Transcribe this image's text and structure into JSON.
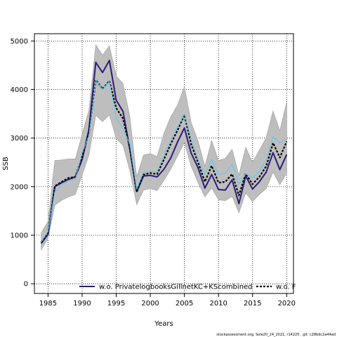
{
  "chart_data": {
    "type": "line",
    "xlabel": "Years",
    "ylabel": "SSB",
    "xlim": [
      1983,
      2021
    ],
    "ylim": [
      -200,
      5150
    ],
    "x_ticks": [
      1985,
      1990,
      1995,
      2000,
      2005,
      2010,
      2015,
      2020
    ],
    "y_ticks": [
      0,
      1000,
      2000,
      3000,
      4000,
      5000
    ],
    "grid": true,
    "legend_position": "bottom",
    "x": [
      1984,
      1985,
      1986,
      1987,
      1988,
      1989,
      1990,
      1991,
      1992,
      1993,
      1994,
      1995,
      1996,
      1997,
      1998,
      1999,
      2000,
      2001,
      2002,
      2003,
      2004,
      2005,
      2006,
      2007,
      2008,
      2009,
      2010,
      2011,
      2012,
      2013,
      2014,
      2015,
      2016,
      2017,
      2018,
      2019,
      2020
    ],
    "band": {
      "lower": [
        700,
        930,
        1620,
        1720,
        1790,
        1840,
        2240,
        2650,
        3470,
        3340,
        3480,
        2990,
        2850,
        2330,
        1630,
        1930,
        1960,
        1920,
        2130,
        2360,
        2630,
        2910,
        2420,
        2080,
        1790,
        1970,
        1730,
        1710,
        1800,
        1460,
        1870,
        1690,
        1840,
        1960,
        2300,
        2040,
        2280
      ],
      "upper": [
        1050,
        1290,
        2540,
        2550,
        2570,
        2570,
        3080,
        3580,
        4920,
        4710,
        4900,
        4280,
        4120,
        3450,
        2200,
        2650,
        2680,
        2620,
        3100,
        3440,
        3680,
        4060,
        3320,
        2940,
        2420,
        2950,
        2540,
        2580,
        2770,
        2240,
        2810,
        2500,
        2750,
        3010,
        3560,
        3150,
        3740
      ]
    },
    "series": [
      {
        "name": "w.o. PrivatelogbooksGillnetKC+KScombined",
        "color": "#2e1b78",
        "style": "solid",
        "values": [
          830,
          1020,
          2000,
          2080,
          2150,
          2200,
          2560,
          3180,
          4560,
          4350,
          4600,
          3780,
          3550,
          2770,
          1900,
          2220,
          2230,
          2200,
          2360,
          2590,
          2920,
          3210,
          2690,
          2390,
          1970,
          2250,
          1940,
          1930,
          2140,
          1650,
          2220,
          1950,
          2100,
          2300,
          2700,
          2350,
          2660
        ]
      },
      {
        "name": "w.o. F",
        "color": "#000000",
        "style": "dashed",
        "values": [
          850,
          1060,
          2010,
          2100,
          2180,
          2200,
          2620,
          3110,
          4200,
          4010,
          4180,
          3620,
          3400,
          2800,
          1890,
          2250,
          2280,
          2260,
          2560,
          2880,
          3160,
          3480,
          2870,
          2500,
          2100,
          2430,
          2080,
          2100,
          2260,
          1820,
          2270,
          2050,
          2200,
          2420,
          2900,
          2600,
          2930
        ]
      },
      {
        "name": "",
        "color": "#5bc8f0",
        "style": "solid",
        "values": [
          860,
          1080,
          1900,
          2020,
          2130,
          2150,
          2700,
          3050,
          4200,
          4000,
          4170,
          3400,
          3200,
          2880,
          1950,
          2300,
          2320,
          2300,
          2640,
          2960,
          3220,
          3500,
          2980,
          2550,
          2250,
          2560,
          2250,
          2280,
          2460,
          2050,
          2260,
          2180,
          2310,
          2550,
          3030,
          2900,
          2980
        ]
      }
    ]
  },
  "footer": {
    "text": "stockassessment.org, Sole20_24_2021, r14220 , git: c28bdc2a44ad"
  },
  "colors": {
    "band_fill": "#bebebe",
    "band_stroke": "#9a9a9a",
    "grid": "#000000"
  }
}
